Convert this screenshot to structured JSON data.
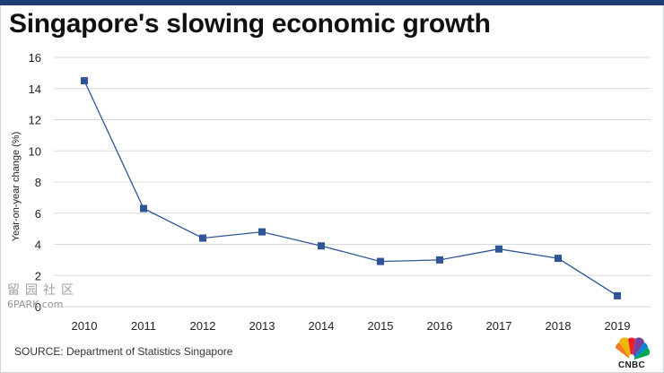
{
  "title": "Singapore's slowing economic growth",
  "source": "SOURCE: Department of Statistics Singapore",
  "watermark": {
    "chars": "留园社区",
    "site": "6PARK.com"
  },
  "logo": {
    "text": "CNBC"
  },
  "colors": {
    "line": "#2f5597",
    "marker": "#2f5597",
    "grid": "#d9d9d9",
    "topbar": "#1d3f73"
  },
  "chart_data": {
    "type": "line",
    "title": "Singapore's slowing economic growth",
    "xlabel": "",
    "ylabel": "Year-on-year change (%)",
    "ylim": [
      0,
      16
    ],
    "yticks": [
      0,
      2,
      4,
      6,
      8,
      10,
      12,
      14,
      16
    ],
    "categories": [
      "2010",
      "2011",
      "2012",
      "2013",
      "2014",
      "2015",
      "2016",
      "2017",
      "2018",
      "2019"
    ],
    "series": [
      {
        "values": [
          14.5,
          6.3,
          4.4,
          4.8,
          3.9,
          2.9,
          3.0,
          3.7,
          3.1,
          0.7
        ]
      }
    ],
    "grid": "horizontal",
    "legend": "none",
    "marker": "square"
  }
}
